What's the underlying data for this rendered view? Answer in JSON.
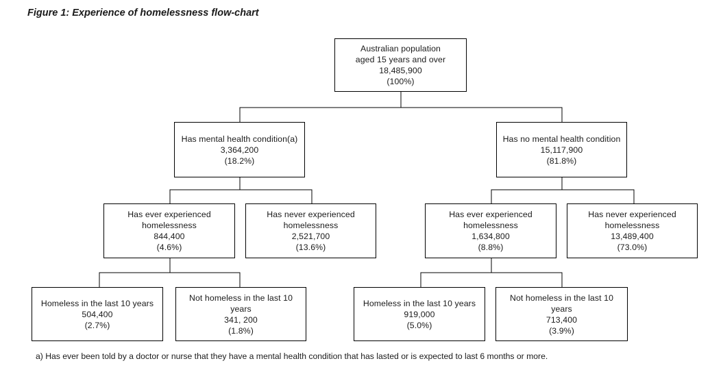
{
  "title": "Figure 1: Experience of homelessness flow-chart",
  "nodes": {
    "root": {
      "lines": [
        "Australian population",
        "aged 15 years and over",
        "18,485,900",
        "(100%)"
      ]
    },
    "mh": {
      "lines": [
        "Has mental health condition(a)",
        "3,364,200",
        "(18.2%)"
      ]
    },
    "nomh": {
      "lines": [
        "Has no mental health condition",
        "15,117,900",
        "(81.8%)"
      ]
    },
    "mh_ever": {
      "lines": [
        "Has ever experienced",
        "homelessness",
        "844,400",
        "(4.6%)"
      ]
    },
    "mh_never": {
      "lines": [
        "Has never experienced",
        "homelessness",
        "2,521,700",
        "(13.6%)"
      ]
    },
    "nomh_ever": {
      "lines": [
        "Has ever experienced",
        "homelessness",
        "1,634,800",
        "(8.8%)"
      ]
    },
    "nomh_never": {
      "lines": [
        "Has never experienced",
        "homelessness",
        "13,489,400",
        "(73.0%)"
      ]
    },
    "mh_hl10": {
      "lines": [
        "Homeless in the last 10 years",
        "504,400",
        "(2.7%)"
      ]
    },
    "mh_nhl10": {
      "lines": [
        "Not homeless in the last 10",
        "years",
        "341, 200",
        "(1.8%)"
      ]
    },
    "nomh_hl10": {
      "lines": [
        "Homeless in the last 10 years",
        "919,000",
        "(5.0%)"
      ]
    },
    "nomh_nhl10": {
      "lines": [
        "Not homeless in the last 10",
        "years",
        "713,400",
        "(3.9%)"
      ]
    }
  },
  "footnote": "a) Has ever been told by a doctor or nurse that they have a mental health condition that has lasted or is expected to last 6 months or more."
}
